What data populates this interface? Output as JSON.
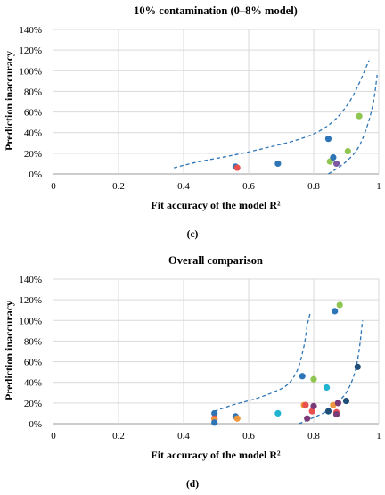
{
  "chart_data": [
    {
      "type": "scatter",
      "title": "10% contamination (0–8% model)",
      "xlabel": "Fit accuracy of the model R²",
      "ylabel": "Prediction inaccuracy",
      "panel_label": "(c)",
      "xlim": [
        0,
        1
      ],
      "ylim": [
        0,
        140
      ],
      "x_ticks": [
        "0",
        "0.2",
        "0.4",
        "0.6",
        "0.8",
        "1"
      ],
      "y_ticks": [
        "0%",
        "20%",
        "40%",
        "60%",
        "80%",
        "100%",
        "120%",
        "140%"
      ],
      "grid": true,
      "legend": "none",
      "points": [
        {
          "x": 0.56,
          "y": 7,
          "color": "#2e75b6"
        },
        {
          "x": 0.565,
          "y": 6,
          "color": "#e8504f"
        },
        {
          "x": 0.69,
          "y": 10,
          "color": "#2e75b6"
        },
        {
          "x": 0.845,
          "y": 34,
          "color": "#2e75b6"
        },
        {
          "x": 0.85,
          "y": 12,
          "color": "#8fc551"
        },
        {
          "x": 0.86,
          "y": 16,
          "color": "#2e75b6"
        },
        {
          "x": 0.87,
          "y": 10,
          "color": "#7a5aa0"
        },
        {
          "x": 0.905,
          "y": 22,
          "color": "#8fc551"
        },
        {
          "x": 0.94,
          "y": 56,
          "color": "#8fc551"
        }
      ],
      "curves": [
        {
          "style": "dashed",
          "color": "#2e75b6",
          "x": [
            0.37,
            0.45,
            0.55,
            0.65,
            0.75,
            0.82,
            0.87,
            0.91,
            0.94,
            0.97
          ],
          "y": [
            6,
            12,
            18,
            25,
            33,
            42,
            54,
            70,
            88,
            110
          ]
        },
        {
          "style": "dashed",
          "color": "#2e75b6",
          "x": [
            0.845,
            0.87,
            0.9,
            0.93,
            0.95,
            0.97,
            0.985,
            0.995
          ],
          "y": [
            0,
            5,
            12,
            22,
            34,
            52,
            72,
            96
          ]
        }
      ]
    },
    {
      "type": "scatter",
      "title": "Overall comparison",
      "xlabel": "Fit accuracy of the model R²",
      "ylabel": "Prediction inaccuracy",
      "panel_label": "(d)",
      "xlim": [
        0,
        1
      ],
      "ylim": [
        0,
        140
      ],
      "x_ticks": [
        "0",
        "0.2",
        "0.4",
        "0.6",
        "0.8",
        "1"
      ],
      "y_ticks": [
        "0%",
        "20%",
        "40%",
        "60%",
        "80%",
        "100%",
        "120%",
        "140%"
      ],
      "grid": true,
      "legend": "none",
      "points": [
        {
          "x": 0.495,
          "y": 10,
          "color": "#2e75b6"
        },
        {
          "x": 0.495,
          "y": 5,
          "color": "#e8504f"
        },
        {
          "x": 0.495,
          "y": 4,
          "color": "#f0963c"
        },
        {
          "x": 0.495,
          "y": 1,
          "color": "#2e75b6"
        },
        {
          "x": 0.56,
          "y": 7,
          "color": "#2e75b6"
        },
        {
          "x": 0.565,
          "y": 5,
          "color": "#f0963c"
        },
        {
          "x": 0.69,
          "y": 10,
          "color": "#21b4d2"
        },
        {
          "x": 0.765,
          "y": 46,
          "color": "#2e75b6"
        },
        {
          "x": 0.77,
          "y": 18,
          "color": "#f0963c"
        },
        {
          "x": 0.775,
          "y": 18,
          "color": "#e8504f"
        },
        {
          "x": 0.78,
          "y": 5,
          "color": "#7a3a78"
        },
        {
          "x": 0.795,
          "y": 12,
          "color": "#e8504f"
        },
        {
          "x": 0.8,
          "y": 43,
          "color": "#8fc551"
        },
        {
          "x": 0.8,
          "y": 17,
          "color": "#7a3a78"
        },
        {
          "x": 0.84,
          "y": 35,
          "color": "#21b4d2"
        },
        {
          "x": 0.845,
          "y": 12,
          "color": "#1f4e79"
        },
        {
          "x": 0.86,
          "y": 18,
          "color": "#f0963c"
        },
        {
          "x": 0.865,
          "y": 109,
          "color": "#2e75b6"
        },
        {
          "x": 0.87,
          "y": 11,
          "color": "#e8504f"
        },
        {
          "x": 0.87,
          "y": 9,
          "color": "#7a3a78"
        },
        {
          "x": 0.875,
          "y": 20,
          "color": "#7a3a78"
        },
        {
          "x": 0.88,
          "y": 115,
          "color": "#8fc551"
        },
        {
          "x": 0.9,
          "y": 22,
          "color": "#1f4e79"
        },
        {
          "x": 0.935,
          "y": 55,
          "color": "#1f4e79"
        }
      ],
      "curves": [
        {
          "style": "dashed",
          "color": "#2e75b6",
          "x": [
            0.495,
            0.55,
            0.62,
            0.68,
            0.72,
            0.75,
            0.77,
            0.78,
            0.79
          ],
          "y": [
            12,
            18,
            24,
            31,
            38,
            52,
            75,
            95,
            108
          ]
        },
        {
          "style": "dashed",
          "color": "#2e75b6",
          "x": [
            0.755,
            0.8,
            0.84,
            0.87,
            0.9,
            0.925,
            0.94,
            0.95
          ],
          "y": [
            0,
            6,
            12,
            20,
            30,
            48,
            72,
            100
          ]
        }
      ]
    }
  ]
}
